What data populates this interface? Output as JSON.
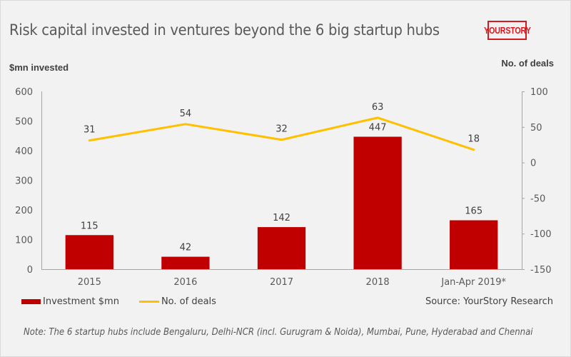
{
  "header": {
    "title": "Risk capital invested in ventures beyond the 6 big startup hubs",
    "logo_text": "YOURSTORY"
  },
  "footer": {
    "source": "Source: YourStory Research",
    "note": "Note: The 6 startup hubs include Bengaluru, Delhi-NCR (incl. Gurugram & Noida), Mumbai, Pune, Hyderabad and Chennai"
  },
  "colors": {
    "bar": "#c00000",
    "line": "#ffc000",
    "logo": "#d71920",
    "background": "#f2f2f2"
  },
  "chart_data": {
    "type": "bar",
    "title": "Risk capital invested in ventures beyond the 6 big startup hubs",
    "categories": [
      "2015",
      "2016",
      "2017",
      "2018",
      "Jan-Apr 2019*"
    ],
    "series": [
      {
        "name": "Investment $mn",
        "type": "bar",
        "axis": "left",
        "values": [
          115,
          42,
          142,
          447,
          165
        ],
        "labels": [
          "115",
          "42",
          "142",
          "447",
          "165"
        ]
      },
      {
        "name": "No. of deals",
        "type": "line",
        "axis": "right",
        "values": [
          31,
          54,
          32,
          63,
          18
        ],
        "labels": [
          "31",
          "54",
          "32",
          "63",
          "18"
        ]
      }
    ],
    "ylabel": "$mn invested",
    "ylabel_right": "No. of deals",
    "xlabel": "",
    "ylim": [
      0,
      600
    ],
    "yticks": [
      "0",
      "100",
      "200",
      "300",
      "400",
      "500",
      "600"
    ],
    "ylim_right": [
      -150,
      100
    ],
    "yticks_right": [
      "-150",
      "-100",
      "-50",
      "0",
      "50",
      "100"
    ],
    "grid": false,
    "legend": [
      "Investment $mn",
      "No. of deals"
    ],
    "legend_position": "bottom-left"
  }
}
